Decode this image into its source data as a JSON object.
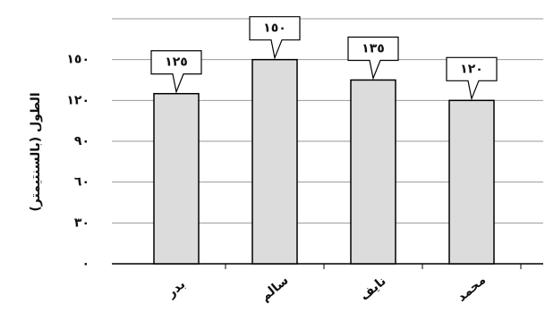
{
  "chart_data": {
    "type": "bar",
    "y_label": "الطول (بالسنتيمتر)",
    "categories": [
      "بدر",
      "سالم",
      "نايف",
      "محمد"
    ],
    "values": [
      125,
      150,
      135,
      120
    ],
    "value_labels": [
      "١٢٥",
      "١٥٠",
      "١٣٥",
      "١٢٠"
    ],
    "color": "#dcdcdc",
    "ylim": [
      0,
      180
    ],
    "yticks": [
      {
        "value": 0,
        "label": "٠"
      },
      {
        "value": 30,
        "label": "٣٠"
      },
      {
        "value": 60,
        "label": "٦٠"
      },
      {
        "value": 90,
        "label": "٩٠"
      },
      {
        "value": 120,
        "label": "١٢٠"
      },
      {
        "value": 150,
        "label": "١٥٠"
      }
    ],
    "grid": true
  }
}
